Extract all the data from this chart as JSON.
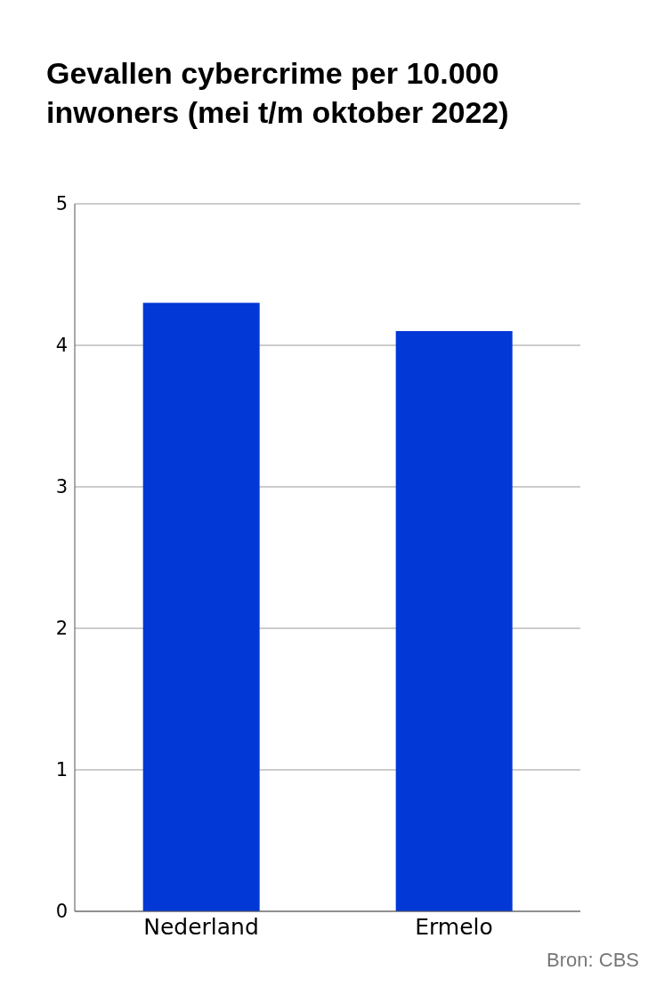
{
  "chart_data": {
    "type": "bar",
    "title": "Gevallen cybercrime per 10.000 inwoners (mei t/m oktober 2022)",
    "categories": [
      "Nederland",
      "Ermelo"
    ],
    "values": [
      4.3,
      4.1
    ],
    "color": "#0238d6",
    "ylim": [
      0,
      5
    ],
    "yticks": [
      0,
      1,
      2,
      3,
      4,
      5
    ],
    "grid": "y",
    "annotations": [
      "Bron: CBS"
    ]
  }
}
